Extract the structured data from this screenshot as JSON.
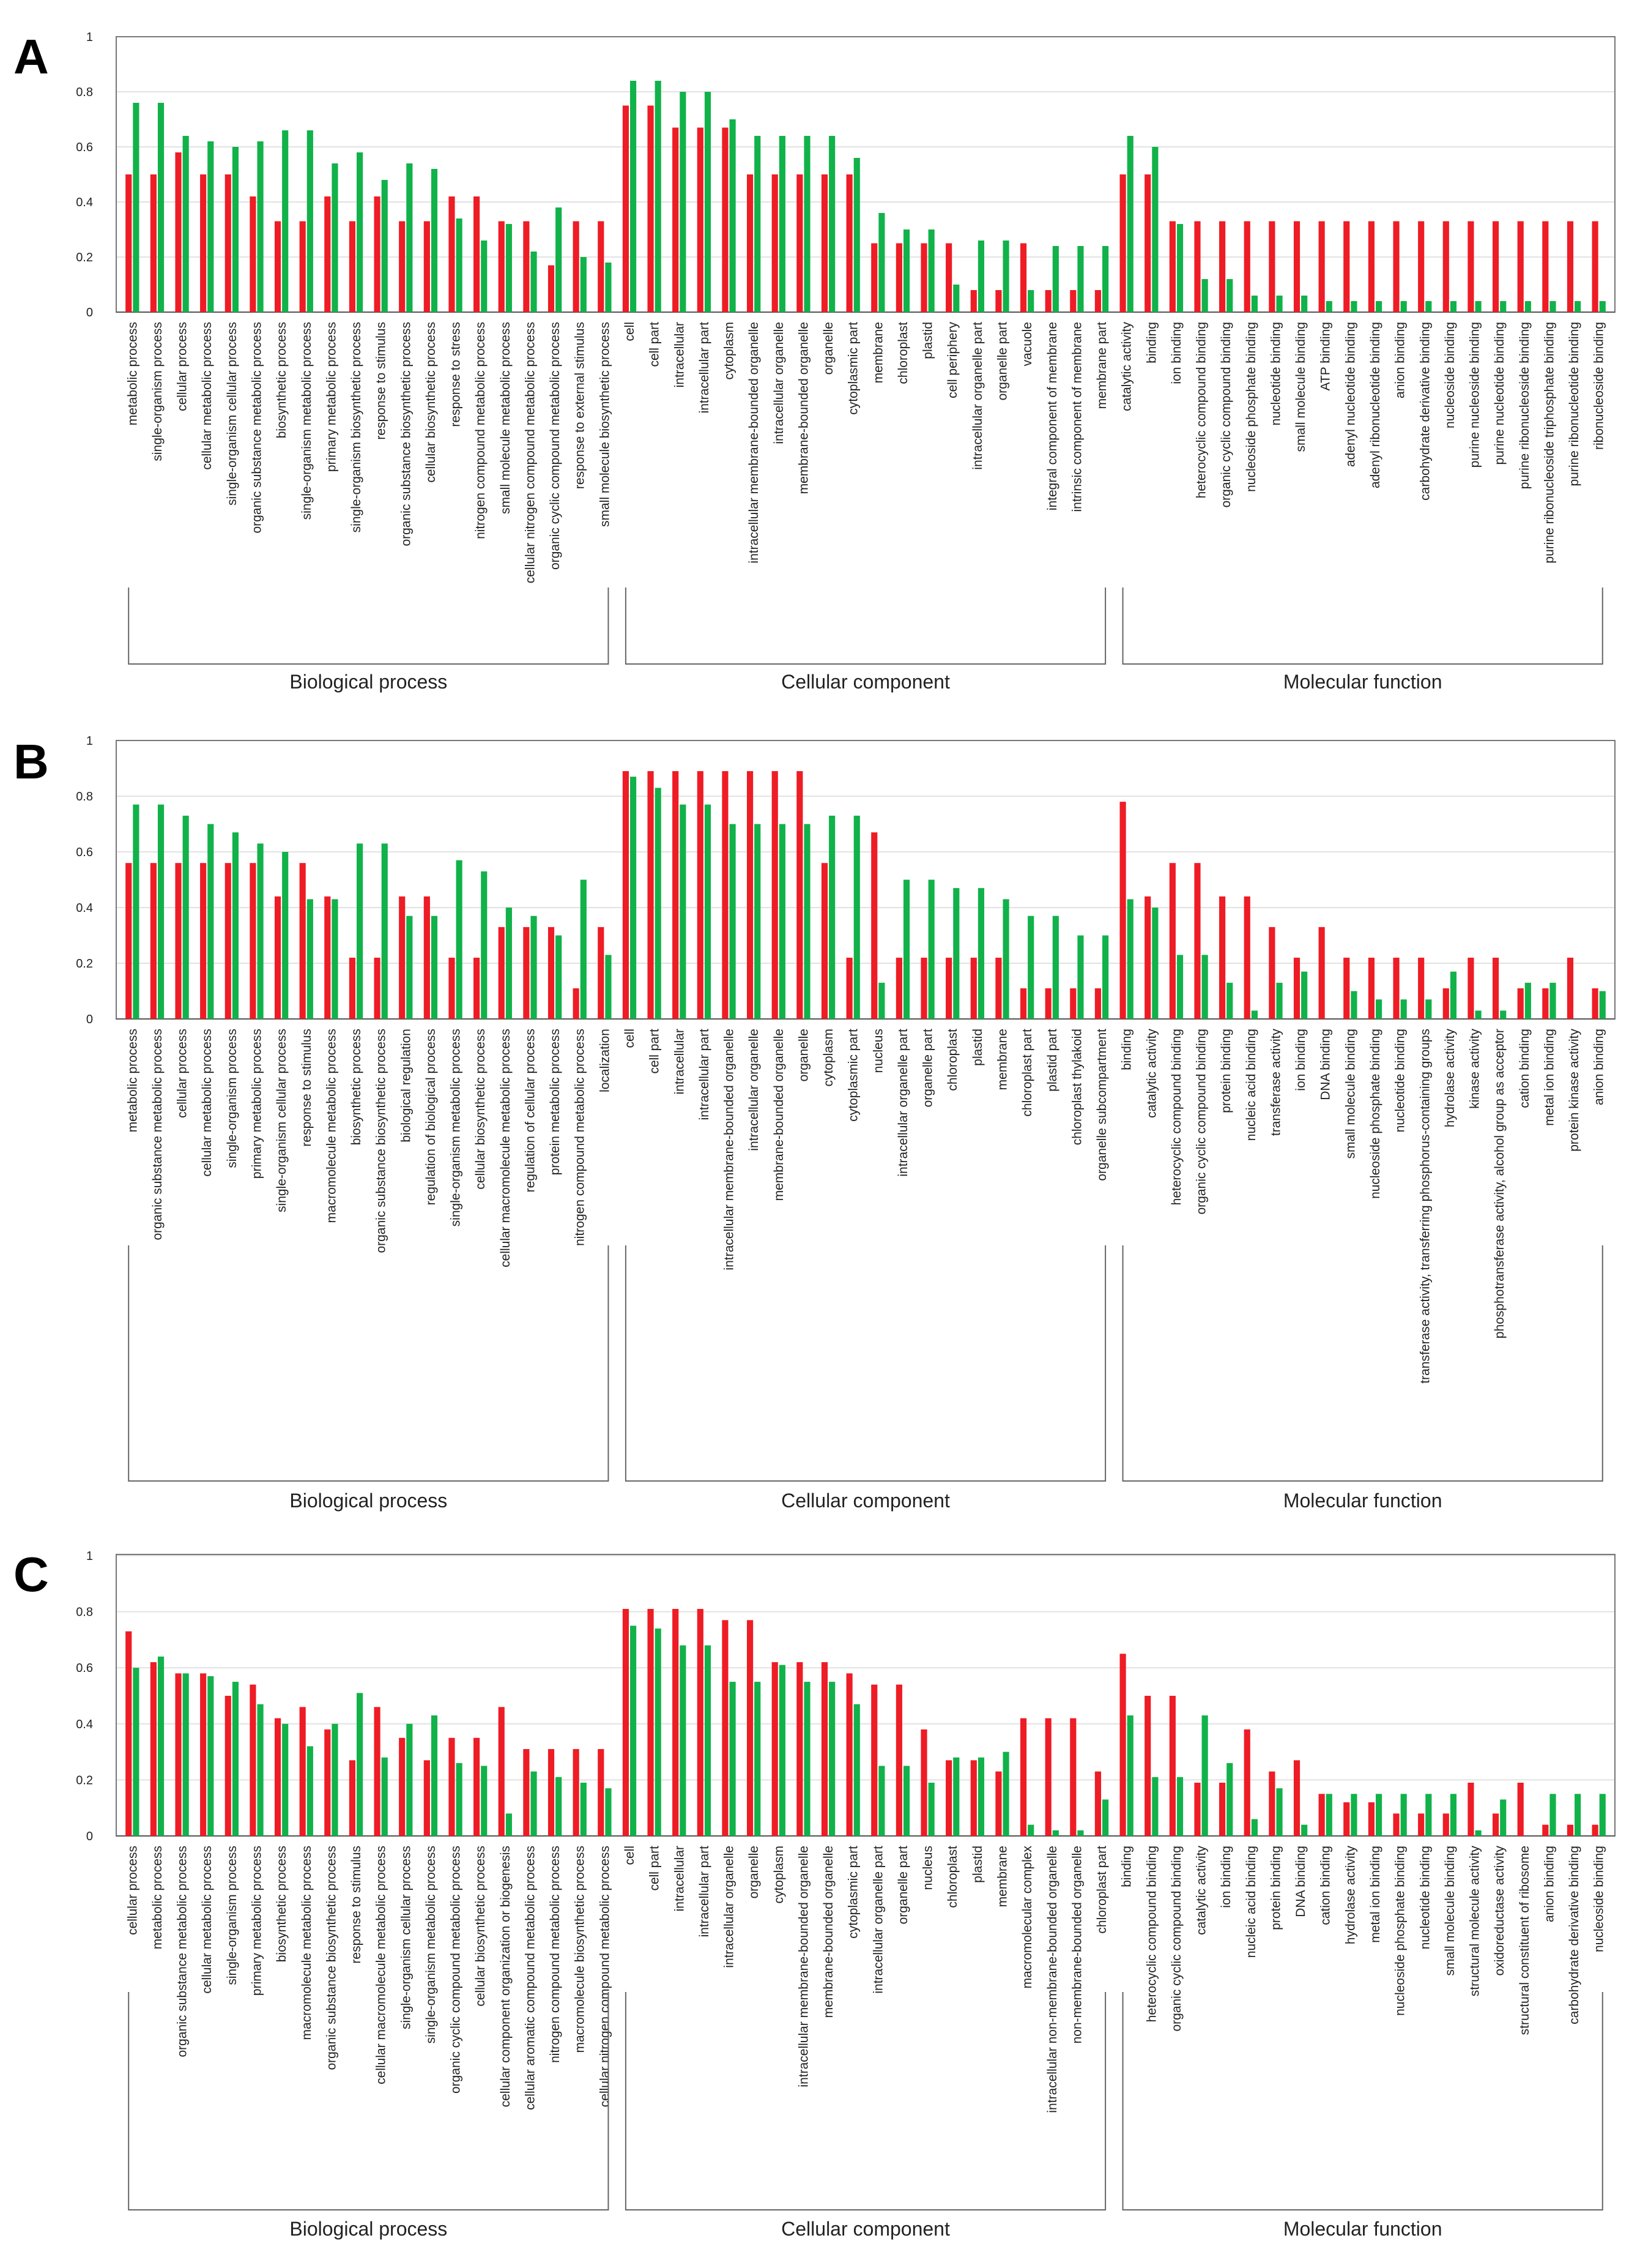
{
  "colors": {
    "series_red": "#ee1c25",
    "series_green": "#11b24a",
    "axis": "#555555",
    "frame": "#777777"
  },
  "chart_data": [
    {
      "panel": "A",
      "type": "bar",
      "ylim": [
        0,
        1
      ],
      "yticks": [
        "0",
        "0.2",
        "0.4",
        "0.6",
        "0.8",
        "1"
      ],
      "grid": true,
      "series": [
        {
          "name": "red"
        },
        {
          "name": "green"
        }
      ],
      "groups": [
        {
          "label": "Biological process",
          "categories": [
            "metabolic process",
            "single-organism process",
            "cellular process",
            "cellular metabolic process",
            "single-organism cellular process",
            "organic substance metabolic process",
            "biosynthetic process",
            "single-organism metabolic process",
            "primary metabolic process",
            "single-organism biosynthetic process",
            "response to stimulus",
            "organic substance biosynthetic process",
            "cellular biosynthetic process",
            "response to stress",
            "nitrogen compound metabolic process",
            "small molecule metabolic process",
            "cellular nitrogen compound metabolic process",
            "organic cyclic compound metabolic process",
            "response to external stimulus",
            "small molecule biosynthetic process"
          ],
          "red": [
            0.5,
            0.5,
            0.58,
            0.5,
            0.5,
            0.42,
            0.33,
            0.33,
            0.42,
            0.33,
            0.42,
            0.33,
            0.33,
            0.42,
            0.42,
            0.33,
            0.33,
            0.17,
            0.33,
            0.33
          ],
          "green": [
            0.76,
            0.76,
            0.64,
            0.62,
            0.6,
            0.62,
            0.66,
            0.66,
            0.54,
            0.58,
            0.48,
            0.54,
            0.52,
            0.34,
            0.26,
            0.32,
            0.22,
            0.38,
            0.2,
            0.18
          ]
        },
        {
          "label": "Cellular component",
          "categories": [
            "cell",
            "cell part",
            "intracellular",
            "intracellular part",
            "cytoplasm",
            "intracellular membrane-bounded organelle",
            "intracellular organelle",
            "membrane-bounded organelle",
            "organelle",
            "cytoplasmic part",
            "membrane",
            "chloroplast",
            "plastid",
            "cell periphery",
            "intracellular organelle part",
            "organelle part",
            "vacuole",
            "integral component of membrane",
            "intrinsic component of membrane",
            "membrane part"
          ],
          "red": [
            0.75,
            0.75,
            0.67,
            0.67,
            0.67,
            0.5,
            0.5,
            0.5,
            0.5,
            0.5,
            0.25,
            0.25,
            0.25,
            0.25,
            0.08,
            0.08,
            0.25,
            0.08,
            0.08,
            0.08
          ],
          "green": [
            0.84,
            0.84,
            0.8,
            0.8,
            0.7,
            0.64,
            0.64,
            0.64,
            0.64,
            0.56,
            0.36,
            0.3,
            0.3,
            0.1,
            0.26,
            0.26,
            0.08,
            0.24,
            0.24,
            0.24
          ]
        },
        {
          "label": "Molecular function",
          "categories": [
            "catalytic activity",
            "binding",
            "ion binding",
            "heterocyclic compound binding",
            "organic cyclic compound binding",
            "nucleoside phosphate binding",
            "nucleotide binding",
            "small molecule binding",
            "ATP binding",
            "adenyl nucleotide binding",
            "adenyl ribonucleotide binding",
            "anion binding",
            "carbohydrate derivative binding",
            "nucleoside binding",
            "purine nucleoside binding",
            "purine nucleotide binding",
            "purine ribonucleoside binding",
            "purine ribonucleoside triphosphate binding",
            "purine ribonucleotide binding",
            "ribonucleoside binding"
          ],
          "red": [
            0.5,
            0.5,
            0.33,
            0.33,
            0.33,
            0.33,
            0.33,
            0.33,
            0.33,
            0.33,
            0.33,
            0.33,
            0.33,
            0.33,
            0.33,
            0.33,
            0.33,
            0.33,
            0.33,
            0.33
          ],
          "green": [
            0.64,
            0.6,
            0.32,
            0.12,
            0.12,
            0.06,
            0.06,
            0.06,
            0.04,
            0.04,
            0.04,
            0.04,
            0.04,
            0.04,
            0.04,
            0.04,
            0.04,
            0.04,
            0.04,
            0.04
          ]
        }
      ]
    },
    {
      "panel": "B",
      "type": "bar",
      "ylim": [
        0,
        1
      ],
      "yticks": [
        "0",
        "0.2",
        "0.4",
        "0.6",
        "0.8",
        "1"
      ],
      "grid": true,
      "series": [
        {
          "name": "red"
        },
        {
          "name": "green"
        }
      ],
      "groups": [
        {
          "label": "Biological process",
          "categories": [
            "metabolic process",
            "organic substance metabolic process",
            "cellular process",
            "cellular metabolic process",
            "single-organism process",
            "primary metabolic process",
            "single-organism cellular process",
            "response to stimulus",
            "macromolecule metabolic process",
            "biosynthetic process",
            "organic substance biosynthetic process",
            "biological regulation",
            "regulation of biological process",
            "single-organism metabolic process",
            "cellular biosynthetic process",
            "cellular macromolecule metabolic process",
            "regulation of cellular process",
            "protein metabolic process",
            "nitrogen compound metabolic process",
            "localization"
          ],
          "red": [
            0.56,
            0.56,
            0.56,
            0.56,
            0.56,
            0.56,
            0.44,
            0.56,
            0.44,
            0.22,
            0.22,
            0.44,
            0.44,
            0.22,
            0.22,
            0.33,
            0.33,
            0.33,
            0.11,
            0.33
          ],
          "green": [
            0.77,
            0.77,
            0.73,
            0.7,
            0.67,
            0.63,
            0.6,
            0.43,
            0.43,
            0.63,
            0.63,
            0.37,
            0.37,
            0.57,
            0.53,
            0.4,
            0.37,
            0.3,
            0.5,
            0.23
          ]
        },
        {
          "label": "Cellular component",
          "categories": [
            "cell",
            "cell part",
            "intracellular",
            "intracellular part",
            "intracellular membrane-bounded organelle",
            "intracellular organelle",
            "membrane-bounded organelle",
            "organelle",
            "cytoplasm",
            "cytoplasmic part",
            "nucleus",
            "intracellular organelle part",
            "organelle part",
            "chloroplast",
            "plastid",
            "membrane",
            "chloroplast part",
            "plastid part",
            "chloroplast thylakoid",
            "organelle subcompartment"
          ],
          "red": [
            0.89,
            0.89,
            0.89,
            0.89,
            0.89,
            0.89,
            0.89,
            0.89,
            0.56,
            0.22,
            0.67,
            0.22,
            0.22,
            0.22,
            0.22,
            0.22,
            0.11,
            0.11,
            0.11,
            0.11
          ],
          "green": [
            0.87,
            0.83,
            0.77,
            0.77,
            0.7,
            0.7,
            0.7,
            0.7,
            0.73,
            0.73,
            0.13,
            0.5,
            0.5,
            0.47,
            0.47,
            0.43,
            0.37,
            0.37,
            0.3,
            0.3
          ]
        },
        {
          "label": "Molecular function",
          "categories": [
            "binding",
            "catalytic activity",
            "heterocyclic compound binding",
            "organic cyclic compound binding",
            "protein binding",
            "nucleic acid binding",
            "transferase activity",
            "ion binding",
            "DNA binding",
            "small molecule binding",
            "nucleoside phosphate binding",
            "nucleotide binding",
            "transferase activity, transferring phosphorus-containing groups",
            "hydrolase activity",
            "kinase activity",
            "phosphotransferase activity, alcohol group as acceptor",
            "cation binding",
            "metal ion binding",
            "protein kinase activity",
            "anion binding"
          ],
          "red": [
            0.78,
            0.44,
            0.56,
            0.56,
            0.44,
            0.44,
            0.33,
            0.22,
            0.33,
            0.22,
            0.22,
            0.22,
            0.22,
            0.11,
            0.22,
            0.22,
            0.11,
            0.11,
            0.22,
            0.11
          ],
          "green": [
            0.43,
            0.4,
            0.23,
            0.23,
            0.13,
            0.03,
            0.13,
            0.17,
            0,
            0.1,
            0.07,
            0.07,
            0.07,
            0.17,
            0.03,
            0.03,
            0.13,
            0.13,
            0,
            0.1
          ]
        }
      ]
    },
    {
      "panel": "C",
      "type": "bar",
      "ylim": [
        0,
        1
      ],
      "yticks": [
        "0",
        "0.2",
        "0.4",
        "0.6",
        "0.8",
        "1"
      ],
      "grid": true,
      "series": [
        {
          "name": "red"
        },
        {
          "name": "green"
        }
      ],
      "groups": [
        {
          "label": "Biological process",
          "categories": [
            "cellular process",
            "metabolic process",
            "organic substance metabolic process",
            "cellular metabolic process",
            "single-organism process",
            "primary metabolic process",
            "biosynthetic process",
            "macromolecule metabolic process",
            "organic substance biosynthetic process",
            "response to stimulus",
            "cellular macromolecule metabolic process",
            "single-organism cellular process",
            "single-organism metabolic process",
            "organic cyclic compound metabolic process",
            "cellular biosynthetic process",
            "cellular component organization or biogenesis",
            "cellular aromatic compound metabolic process",
            "nitrogen compound metabolic process",
            "macromolecule biosynthetic process",
            "cellular nitrogen compound metabolic process"
          ],
          "red": [
            0.73,
            0.62,
            0.58,
            0.58,
            0.5,
            0.54,
            0.42,
            0.46,
            0.38,
            0.27,
            0.46,
            0.35,
            0.27,
            0.35,
            0.35,
            0.46,
            0.31,
            0.31,
            0.31,
            0.31
          ],
          "green": [
            0.6,
            0.64,
            0.58,
            0.57,
            0.55,
            0.47,
            0.4,
            0.32,
            0.4,
            0.51,
            0.28,
            0.4,
            0.43,
            0.26,
            0.25,
            0.08,
            0.23,
            0.21,
            0.19,
            0.17
          ]
        },
        {
          "label": "Cellular component",
          "categories": [
            "cell",
            "cell part",
            "intracellular",
            "intracellular part",
            "intracellular organelle",
            "organelle",
            "cytoplasm",
            "intracellular membrane-bounded organelle",
            "membrane-bounded organelle",
            "cytoplasmic part",
            "intracellular organelle part",
            "organelle part",
            "nucleus",
            "chloroplast",
            "plastid",
            "membrane",
            "macromolecular complex",
            "intracellular non-membrane-bounded organelle",
            "non-membrane-bounded organelle",
            "chloroplast part"
          ],
          "red": [
            0.81,
            0.81,
            0.81,
            0.81,
            0.77,
            0.77,
            0.62,
            0.62,
            0.62,
            0.58,
            0.54,
            0.54,
            0.38,
            0.27,
            0.27,
            0.23,
            0.42,
            0.42,
            0.42,
            0.23
          ],
          "green": [
            0.75,
            0.74,
            0.68,
            0.68,
            0.55,
            0.55,
            0.61,
            0.55,
            0.55,
            0.47,
            0.25,
            0.25,
            0.19,
            0.28,
            0.28,
            0.3,
            0.04,
            0.02,
            0.02,
            0.13
          ]
        },
        {
          "label": "Molecular function",
          "categories": [
            "binding",
            "heterocyclic compound binding",
            "organic cyclic compound binding",
            "catalytic activity",
            "ion binding",
            "nucleic acid binding",
            "protein binding",
            "DNA binding",
            "cation binding",
            "hydrolase activity",
            "metal ion binding",
            "nucleoside phosphate binding",
            "nucleotide binding",
            "small molecule binding",
            "structural molecule activity",
            "oxidoreductase activity",
            "structural constituent of ribosome",
            "anion binding",
            "carbohydrate derivative binding",
            "nucleoside binding"
          ],
          "red": [
            0.65,
            0.5,
            0.5,
            0.19,
            0.19,
            0.38,
            0.23,
            0.27,
            0.15,
            0.12,
            0.12,
            0.08,
            0.08,
            0.08,
            0.19,
            0.08,
            0.19,
            0.04,
            0.04,
            0.04
          ],
          "green": [
            0.43,
            0.21,
            0.21,
            0.43,
            0.26,
            0.06,
            0.17,
            0.04,
            0.15,
            0.15,
            0.15,
            0.15,
            0.15,
            0.15,
            0.02,
            0.13,
            0,
            0.15,
            0.15,
            0.15
          ]
        }
      ]
    }
  ]
}
